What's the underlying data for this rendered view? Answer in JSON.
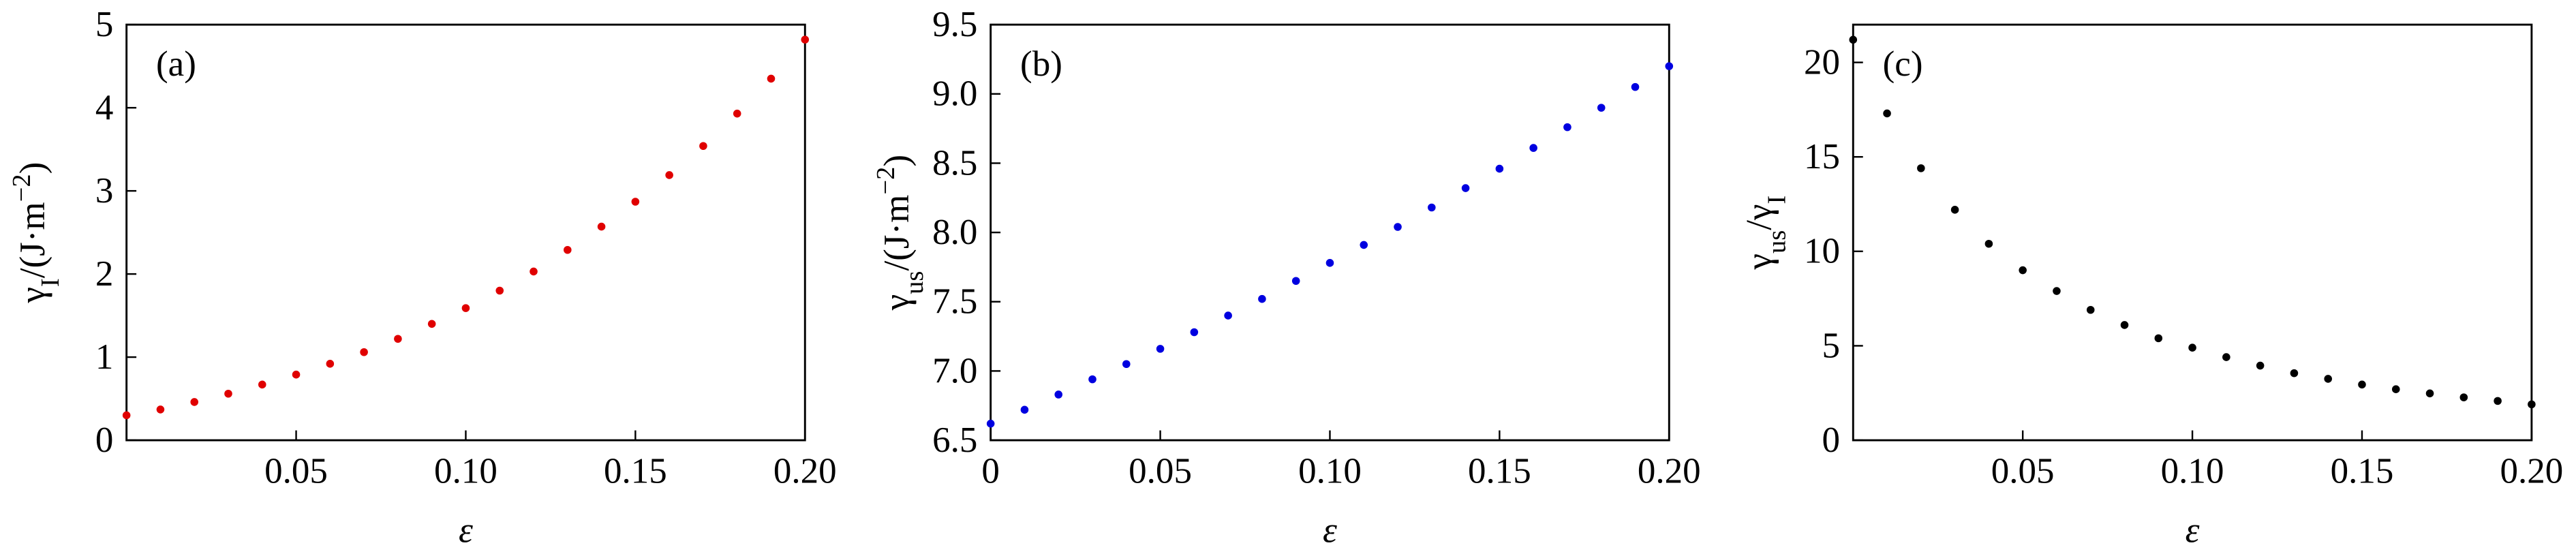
{
  "chart_data": [
    {
      "type": "scatter",
      "annotation": "(a)",
      "xlabel": "ε",
      "ylabel": [
        "γ",
        "I",
        "/(J·m",
        "−2",
        ")"
      ],
      "color": "#e00000",
      "x": [
        0,
        0.01,
        0.02,
        0.03,
        0.04,
        0.05,
        0.06,
        0.07,
        0.08,
        0.09,
        0.1,
        0.11,
        0.12,
        0.13,
        0.14,
        0.15,
        0.16,
        0.17,
        0.18,
        0.19,
        0.2
      ],
      "values": [
        0.3,
        0.37,
        0.46,
        0.56,
        0.67,
        0.79,
        0.92,
        1.06,
        1.22,
        1.4,
        1.59,
        1.8,
        2.03,
        2.29,
        2.57,
        2.87,
        3.19,
        3.54,
        3.93,
        4.35,
        4.82
      ],
      "xlim": [
        0,
        0.2
      ],
      "xticks": [
        0.05,
        {
          "value": 0.1,
          "label": "0.10"
        },
        0.15,
        {
          "value": 0.2,
          "label": "0.20"
        }
      ],
      "ylim": [
        0,
        5
      ],
      "yticks": [
        0,
        1,
        2,
        3,
        4,
        5
      ]
    },
    {
      "type": "scatter",
      "annotation": "(b)",
      "xlabel": "ε",
      "ylabel": [
        "γ",
        "us",
        "/(J·m",
        "−2",
        ")"
      ],
      "color": "#0000e0",
      "x": [
        0,
        0.01,
        0.02,
        0.03,
        0.04,
        0.05,
        0.06,
        0.07,
        0.08,
        0.09,
        0.1,
        0.11,
        0.12,
        0.13,
        0.14,
        0.15,
        0.16,
        0.17,
        0.18,
        0.19,
        0.2
      ],
      "values": [
        6.62,
        6.72,
        6.83,
        6.94,
        7.05,
        7.16,
        7.28,
        7.4,
        7.52,
        7.65,
        7.78,
        7.91,
        8.04,
        8.18,
        8.32,
        8.46,
        8.61,
        8.76,
        8.9,
        9.05,
        9.2
      ],
      "xlim": [
        0,
        0.2
      ],
      "xticks": [
        0,
        0.05,
        {
          "value": 0.1,
          "label": "0.10"
        },
        0.15,
        {
          "value": 0.2,
          "label": "0.20"
        }
      ],
      "ylim": [
        6.5,
        9.5
      ],
      "yticks": [
        6.5,
        {
          "value": 7,
          "label": "7.0"
        },
        7.5,
        {
          "value": 8,
          "label": "8.0"
        },
        8.5,
        {
          "value": 9,
          "label": "9.0"
        },
        9.5
      ]
    },
    {
      "type": "scatter",
      "annotation": "(c)",
      "xlabel": "ε",
      "ylabel": [
        "γ",
        "us",
        "/γ",
        "I"
      ],
      "color": "#000000",
      "x": [
        0,
        0.01,
        0.02,
        0.03,
        0.04,
        0.05,
        0.06,
        0.07,
        0.08,
        0.09,
        0.1,
        0.11,
        0.12,
        0.13,
        0.14,
        0.15,
        0.16,
        0.17,
        0.18,
        0.19,
        0.2
      ],
      "values": [
        21.2,
        17.3,
        14.4,
        12.2,
        10.4,
        9.0,
        7.9,
        6.9,
        6.1,
        5.4,
        4.9,
        4.4,
        3.95,
        3.55,
        3.25,
        2.95,
        2.7,
        2.48,
        2.27,
        2.08,
        1.9
      ],
      "xlim": [
        0,
        0.2
      ],
      "xticks": [
        0.05,
        {
          "value": 0.1,
          "label": "0.10"
        },
        0.15,
        {
          "value": 0.2,
          "label": "0.20"
        }
      ],
      "ylim": [
        0,
        22
      ],
      "yticks": [
        0,
        5,
        10,
        15,
        20
      ]
    }
  ]
}
